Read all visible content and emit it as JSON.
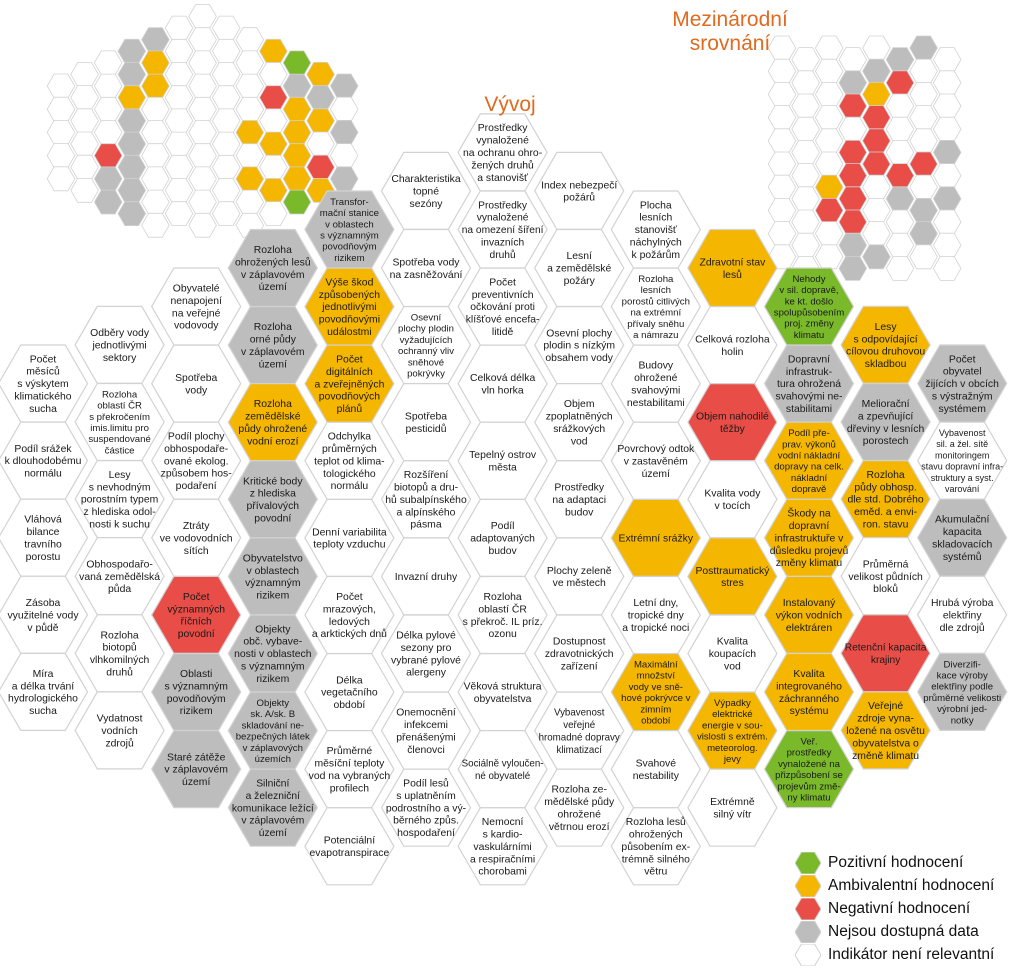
{
  "titles": {
    "development": "Vývoj",
    "international": [
      "Mezinárodní",
      "srovnání"
    ]
  },
  "colors": {
    "positive": "#7ab929",
    "ambivalent": "#f5b600",
    "negative": "#e94d47",
    "no_data": "#bdbdbd",
    "not_relevant": "#ffffff",
    "stroke": "#d2d2d2",
    "title": "#e06a1f"
  },
  "legend": [
    {
      "key": "positive",
      "label": "Pozitivní hodnocení"
    },
    {
      "key": "ambivalent",
      "label": "Ambivalentní hodnocení"
    },
    {
      "key": "negative",
      "label": "Negativní hodnocení"
    },
    {
      "key": "no_data",
      "label": "Nejsou dostupná data"
    },
    {
      "key": "not_relevant",
      "label": "Indikátor není relevantní"
    }
  ],
  "indicators": [
    {
      "col": 0,
      "row": 0,
      "status": "not_relevant",
      "text": [
        "Počet",
        "měsíců",
        "s výskytem",
        "klimatického",
        "sucha"
      ]
    },
    {
      "col": 0,
      "row": 1,
      "status": "not_relevant",
      "text": [
        "Podíl srážek",
        "k dlouhodobému",
        "normálu"
      ]
    },
    {
      "col": 0,
      "row": 2,
      "status": "not_relevant",
      "text": [
        "Vláhová",
        "bilance",
        "travního",
        "porostu"
      ]
    },
    {
      "col": 0,
      "row": 3,
      "status": "not_relevant",
      "text": [
        "Zásoba",
        "využitelné vody",
        "v půdě"
      ]
    },
    {
      "col": 0,
      "row": 4,
      "status": "not_relevant",
      "text": [
        "Míra",
        "a délka trvání",
        "hydrologického",
        "sucha"
      ]
    },
    {
      "col": 1,
      "row": 0,
      "status": "not_relevant",
      "text": [
        "Odběry vody",
        "jednotlivými",
        "sektory"
      ]
    },
    {
      "col": 1,
      "row": 1,
      "status": "not_relevant",
      "text": [
        "Rozloha",
        "oblastí ČR",
        "s překročením",
        "imis.limitu pro",
        "suspendované",
        "částice"
      ]
    },
    {
      "col": 1,
      "row": 2,
      "status": "not_relevant",
      "text": [
        "Lesy",
        "s nevhodným",
        "porostním typem",
        "z hlediska odol-",
        "nosti k suchu"
      ]
    },
    {
      "col": 1,
      "row": 3,
      "status": "not_relevant",
      "text": [
        "Obhospodařo-",
        "vaná zemědělská",
        "půda"
      ]
    },
    {
      "col": 1,
      "row": 4,
      "status": "not_relevant",
      "text": [
        "Rozloha",
        "biotopů",
        "vlhkomilných",
        "druhů"
      ]
    },
    {
      "col": 1,
      "row": 5,
      "status": "not_relevant",
      "text": [
        "Vydatnost",
        "vodních",
        "zdrojů"
      ]
    },
    {
      "col": 2,
      "row": 0,
      "status": "not_relevant",
      "text": [
        "Obyvatelé",
        "nenapojení",
        "na veřejné",
        "vodovody"
      ]
    },
    {
      "col": 2,
      "row": 1,
      "status": "not_relevant",
      "text": [
        "Spotřeba",
        "vody"
      ]
    },
    {
      "col": 2,
      "row": 2,
      "status": "not_relevant",
      "text": [
        "Podíl plochy",
        "obhospodaře-",
        "ované ekolog.",
        "způsobem hos-",
        "podaření"
      ]
    },
    {
      "col": 2,
      "row": 3,
      "status": "not_relevant",
      "text": [
        "Ztráty",
        "ve vodovodních",
        "sítích"
      ]
    },
    {
      "col": 2,
      "row": 4,
      "status": "negative",
      "text": [
        "Počet",
        "významných",
        "říčních",
        "povodní"
      ]
    },
    {
      "col": 2,
      "row": 5,
      "status": "no_data",
      "text": [
        "Oblasti",
        "s významným",
        "povodňovým",
        "rizikem"
      ]
    },
    {
      "col": 2,
      "row": 6,
      "status": "no_data",
      "text": [
        "Staré zátěže",
        "v záplavovém",
        "území"
      ]
    },
    {
      "col": 3,
      "row": 0,
      "status": "no_data",
      "text": [
        "Rozloha",
        "ohrožených lesů",
        "v záplavovém",
        "území"
      ]
    },
    {
      "col": 3,
      "row": 1,
      "status": "no_data",
      "text": [
        "Rozloha",
        "orné půdy",
        "v záplavovém",
        "území"
      ]
    },
    {
      "col": 3,
      "row": 2,
      "status": "ambivalent",
      "text": [
        "Rozloha",
        "zemědělské",
        "půdy ohrožené",
        "vodní erozí"
      ]
    },
    {
      "col": 3,
      "row": 3,
      "status": "no_data",
      "text": [
        "Kritické body",
        "z hlediska",
        "přívalových",
        "povodní"
      ]
    },
    {
      "col": 3,
      "row": 4,
      "status": "no_data",
      "text": [
        "Obyvatelstvo",
        "v oblastech",
        "významným",
        "rizikem"
      ]
    },
    {
      "col": 3,
      "row": 5,
      "status": "no_data",
      "text": [
        "Objekty",
        "obč. vybave-",
        "nosti v oblastech",
        "s významným",
        "rizikem"
      ]
    },
    {
      "col": 3,
      "row": 6,
      "status": "no_data",
      "text": [
        "Objekty",
        "sk. A/sk. B",
        "skladování ne-",
        "bezpečných látek",
        "v záplavových",
        "územích"
      ]
    },
    {
      "col": 3,
      "row": 7,
      "status": "no_data",
      "text": [
        "Silniční",
        "a železniční",
        "komunikace ležící",
        "v záplavovém",
        "území"
      ]
    },
    {
      "col": 4,
      "row": 0,
      "status": "no_data",
      "text": [
        "Transfor-",
        "mační stanice",
        "v oblastech",
        "s významným",
        "povodňovým",
        "rizikem"
      ]
    },
    {
      "col": 4,
      "row": 1,
      "status": "ambivalent",
      "text": [
        "Výše škod",
        "způsobených",
        "jednotlivými",
        "povodňovými",
        "událostmi"
      ]
    },
    {
      "col": 4,
      "row": 2,
      "status": "ambivalent",
      "text": [
        "Počet",
        "digitálních",
        "a zveřejněných",
        "povodňových",
        "plánů"
      ]
    },
    {
      "col": 4,
      "row": 3,
      "status": "not_relevant",
      "text": [
        "Odchylka",
        "průměrných",
        "teplot od klima-",
        "tologického",
        "normálu"
      ]
    },
    {
      "col": 4,
      "row": 4,
      "status": "not_relevant",
      "text": [
        "Denní variabilita",
        "teploty vzduchu"
      ]
    },
    {
      "col": 4,
      "row": 5,
      "status": "not_relevant",
      "text": [
        "Počet",
        "mrazových,",
        "ledových",
        "a arktických dnů"
      ]
    },
    {
      "col": 4,
      "row": 6,
      "status": "not_relevant",
      "text": [
        "Délka",
        "vegetačního",
        "období"
      ]
    },
    {
      "col": 4,
      "row": 7,
      "status": "not_relevant",
      "text": [
        "Průměrné",
        "měsíční teploty",
        "vod na vybraných",
        "profilech"
      ]
    },
    {
      "col": 4,
      "row": 8,
      "status": "not_relevant",
      "text": [
        "Potenciální",
        "evapotranspirace"
      ]
    },
    {
      "col": 5,
      "row": 0,
      "status": "not_relevant",
      "text": [
        "Charakteristika",
        "topné",
        "sezóny"
      ]
    },
    {
      "col": 5,
      "row": 1,
      "status": "not_relevant",
      "text": [
        "Spotřeba vody",
        "na zasněžování"
      ]
    },
    {
      "col": 5,
      "row": 2,
      "status": "not_relevant",
      "text": [
        "Osevní",
        "plochy plodin",
        "vyžadujících",
        "ochranný vliv",
        "sněhové",
        "pokrývky"
      ]
    },
    {
      "col": 5,
      "row": 3,
      "status": "not_relevant",
      "text": [
        "Spotřeba",
        "pesticidů"
      ]
    },
    {
      "col": 5,
      "row": 4,
      "status": "not_relevant",
      "text": [
        "Rozšíření",
        "biotopů a dru-",
        "hů subalpínského",
        "a alpínského",
        "pásma"
      ]
    },
    {
      "col": 5,
      "row": 5,
      "status": "not_relevant",
      "text": [
        "Invazní druhy"
      ]
    },
    {
      "col": 5,
      "row": 6,
      "status": "not_relevant",
      "text": [
        "Délka pylové",
        "sezony pro",
        "vybrané pylové",
        "alergeny"
      ]
    },
    {
      "col": 5,
      "row": 7,
      "status": "not_relevant",
      "text": [
        "Onemocnění",
        "infekcemi",
        "přenášenými",
        "členovci"
      ]
    },
    {
      "col": 5,
      "row": 8,
      "status": "not_relevant",
      "text": [
        "Podíl lesů",
        "s uplatněním",
        "podrostního a vý-",
        "běrného způs.",
        "hospodaření"
      ]
    },
    {
      "col": 6,
      "row": 0,
      "status": "not_relevant",
      "text": [
        "Prostředky",
        "vynaložené",
        "na ochranu ohro-",
        "žených druhů",
        "a stanovišť"
      ]
    },
    {
      "col": 6,
      "row": 1,
      "status": "not_relevant",
      "text": [
        "Prostředky",
        "vynaložené",
        "na omezení šíření",
        "invazních",
        "druhů"
      ]
    },
    {
      "col": 6,
      "row": 2,
      "status": "not_relevant",
      "text": [
        "Počet",
        "preventivních",
        "očkování proti",
        "klíšťové encefa-",
        "litidě"
      ]
    },
    {
      "col": 6,
      "row": 3,
      "status": "not_relevant",
      "text": [
        "Celková délka",
        "vln horka"
      ]
    },
    {
      "col": 6,
      "row": 4,
      "status": "not_relevant",
      "text": [
        "Tepelný ostrov",
        "města"
      ]
    },
    {
      "col": 6,
      "row": 5,
      "status": "not_relevant",
      "text": [
        "Podíl",
        "adaptovaných",
        "budov"
      ]
    },
    {
      "col": 6,
      "row": 6,
      "status": "not_relevant",
      "text": [
        "Rozloha",
        "oblastí ČR",
        "s překroč. IL príz.",
        "ozonu"
      ]
    },
    {
      "col": 6,
      "row": 7,
      "status": "not_relevant",
      "text": [
        "Věková struktura",
        "obyvatelstva"
      ]
    },
    {
      "col": 6,
      "row": 8,
      "status": "not_relevant",
      "text": [
        "Sociálně vyloučen-",
        "né obyvatelé"
      ]
    },
    {
      "col": 6,
      "row": 9,
      "status": "not_relevant",
      "text": [
        "Nemocní",
        "s kardio-",
        "vaskulárními",
        "a respiračními",
        "chorobami"
      ]
    },
    {
      "col": 7,
      "row": 0,
      "status": "not_relevant",
      "text": [
        "Index nebezpečí",
        "požárů"
      ]
    },
    {
      "col": 7,
      "row": 1,
      "status": "not_relevant",
      "text": [
        "Lesní",
        "a zemědělské",
        "požáry"
      ]
    },
    {
      "col": 7,
      "row": 2,
      "status": "not_relevant",
      "text": [
        "Osevní plochy",
        "plodin s nízkým",
        "obsahem vody"
      ]
    },
    {
      "col": 7,
      "row": 3,
      "status": "not_relevant",
      "text": [
        "Objem",
        "zpoplatněných",
        "srážkových",
        "vod"
      ]
    },
    {
      "col": 7,
      "row": 4,
      "status": "not_relevant",
      "text": [
        "Prostředky",
        "na adaptaci",
        "budov"
      ]
    },
    {
      "col": 7,
      "row": 5,
      "status": "not_relevant",
      "text": [
        "Plochy zeleně",
        "ve městech"
      ]
    },
    {
      "col": 7,
      "row": 6,
      "status": "not_relevant",
      "text": [
        "Dostupnost",
        "zdravotnických",
        "zařízení"
      ]
    },
    {
      "col": 7,
      "row": 7,
      "status": "not_relevant",
      "text": [
        "Vybavenost",
        "veřejné",
        "hromadné dopravy",
        "klimatizací"
      ]
    },
    {
      "col": 7,
      "row": 8,
      "status": "not_relevant",
      "text": [
        "Rozloha ze-",
        "mědělské půdy",
        "ohrožené",
        "větrnou erozí"
      ]
    },
    {
      "col": 8,
      "row": 0,
      "status": "not_relevant",
      "text": [
        "Plocha",
        "lesních",
        "stanovišť",
        "náchylných",
        "k požárům"
      ]
    },
    {
      "col": 8,
      "row": 1,
      "status": "not_relevant",
      "text": [
        "Rozloha",
        "lesních",
        "porostů citlivých",
        "na extrémní",
        "přívaly sněhu",
        "a námrazu"
      ]
    },
    {
      "col": 8,
      "row": 2,
      "status": "not_relevant",
      "text": [
        "Budovy",
        "ohrožené",
        "svahovými",
        "nestabilitami"
      ]
    },
    {
      "col": 8,
      "row": 3,
      "status": "not_relevant",
      "text": [
        "Povrchový odtok",
        "v zastavěném",
        "území"
      ]
    },
    {
      "col": 8,
      "row": 4,
      "status": "ambivalent",
      "text": [
        "Extrémní srážky"
      ]
    },
    {
      "col": 8,
      "row": 5,
      "status": "not_relevant",
      "text": [
        "Letní dny,",
        "tropické dny",
        "a tropické noci"
      ]
    },
    {
      "col": 8,
      "row": 6,
      "status": "ambivalent",
      "text": [
        "Maximální",
        "množství",
        "vody ve sně-",
        "hové pokrývce v",
        "zimním",
        "období"
      ]
    },
    {
      "col": 8,
      "row": 7,
      "status": "not_relevant",
      "text": [
        "Svahové",
        "nestability"
      ]
    },
    {
      "col": 8,
      "row": 8,
      "status": "not_relevant",
      "text": [
        "Rozloha lesů",
        "ohrožených",
        "působením ex-",
        "trémně silného",
        "větru"
      ]
    },
    {
      "col": 9,
      "row": 0,
      "status": "ambivalent",
      "text": [
        "Zdravotní stav",
        "lesů"
      ]
    },
    {
      "col": 9,
      "row": 1,
      "status": "not_relevant",
      "text": [
        "Celková rozloha",
        "holin"
      ]
    },
    {
      "col": 9,
      "row": 2,
      "status": "negative",
      "text": [
        "Objem nahodilé",
        "těžby"
      ]
    },
    {
      "col": 9,
      "row": 3,
      "status": "not_relevant",
      "text": [
        "Kvalita vody",
        "v tocích"
      ]
    },
    {
      "col": 9,
      "row": 4,
      "status": "ambivalent",
      "text": [
        "Posttraumatický",
        "stres"
      ]
    },
    {
      "col": 9,
      "row": 5,
      "status": "not_relevant",
      "text": [
        "Kvalita",
        "koupacích",
        "vod"
      ]
    },
    {
      "col": 9,
      "row": 6,
      "status": "ambivalent",
      "text": [
        "Výpadky",
        "elektrické",
        "energie v sou-",
        "vislosti s extrém.",
        "meteorolog.",
        "jevy"
      ]
    },
    {
      "col": 9,
      "row": 7,
      "status": "not_relevant",
      "text": [
        "Extrémně",
        "silný vítr"
      ]
    },
    {
      "col": 10,
      "row": 0,
      "status": "positive",
      "text": [
        "Nehody",
        "v sil. dopravě,",
        "ke kt. došlo",
        "spolupůsobením",
        "proj. změny",
        "klimatu"
      ]
    },
    {
      "col": 10,
      "row": 1,
      "status": "no_data",
      "text": [
        "Dopravní",
        "infrastruk-",
        "tura ohrožená",
        "svahovými ne-",
        "stabilitami"
      ]
    },
    {
      "col": 10,
      "row": 2,
      "status": "ambivalent",
      "text": [
        "Podíl pře-",
        "prav. výkonů",
        "vodní nákladní",
        "dopravy na celk.",
        "nákladní",
        "dopravě"
      ]
    },
    {
      "col": 10,
      "row": 3,
      "status": "ambivalent",
      "text": [
        "Škody na",
        "dopravní",
        "infrastruktuře v",
        "důsledku projevů",
        "změny klimatu"
      ]
    },
    {
      "col": 10,
      "row": 4,
      "status": "ambivalent",
      "text": [
        "Instalovaný",
        "výkon vodních",
        "elektráren"
      ]
    },
    {
      "col": 10,
      "row": 5,
      "status": "ambivalent",
      "text": [
        "Kvalita",
        "integrovaného",
        "záchranného",
        "systému"
      ]
    },
    {
      "col": 10,
      "row": 6,
      "status": "positive",
      "text": [
        "Veř.",
        "prostředky",
        "vynaložené na",
        "přizpůsobení se",
        "projevům změ-",
        "ny klimatu"
      ]
    },
    {
      "col": 11,
      "row": 0,
      "status": "ambivalent",
      "text": [
        "Lesy",
        "s odpovídající",
        "cílovou druhovou",
        "skladbou"
      ]
    },
    {
      "col": 11,
      "row": 1,
      "status": "no_data",
      "text": [
        "Meliorační",
        "a zpevňující",
        "dřeviny v lesních",
        "porostech"
      ]
    },
    {
      "col": 11,
      "row": 2,
      "status": "ambivalent",
      "text": [
        "Rozloha",
        "půdy obhosp.",
        "dle std. Dobrého",
        "eměd. a envi-",
        "ron. stavu"
      ]
    },
    {
      "col": 11,
      "row": 3,
      "status": "not_relevant",
      "text": [
        "Průměrná",
        "velikost půdních",
        "bloků"
      ]
    },
    {
      "col": 11,
      "row": 4,
      "status": "negative",
      "text": [
        "Retenční kapacita",
        "krajiny"
      ]
    },
    {
      "col": 11,
      "row": 5,
      "status": "ambivalent",
      "text": [
        "Veřejné",
        "zdroje vyna-",
        "ložené na osvětu",
        "obyvatelstva o",
        "změně klimatu"
      ]
    },
    {
      "col": 12,
      "row": 0,
      "status": "no_data",
      "text": [
        "Počet",
        "obyvatel",
        "žijících v obcích",
        "s výstražným",
        "systémem"
      ]
    },
    {
      "col": 12,
      "row": 1,
      "status": "not_relevant",
      "text": [
        "Vybavenost",
        "sil. a žel. sítě",
        "monitoringem",
        "stavu dopravní infra-",
        "struktury a syst.",
        "varování"
      ]
    },
    {
      "col": 12,
      "row": 2,
      "status": "no_data",
      "text": [
        "Akumulační",
        "kapacita",
        "skladovacích",
        "systémů"
      ]
    },
    {
      "col": 12,
      "row": 3,
      "status": "not_relevant",
      "text": [
        "Hrubá výroba",
        "elektřiny",
        "dle zdrojů"
      ]
    },
    {
      "col": 12,
      "row": 4,
      "status": "no_data",
      "text": [
        "Diverzifi-",
        "kace výroby",
        "elektřiny podle",
        "průměrné velikosti",
        "výrobní jed-",
        "notky"
      ]
    }
  ],
  "mini_intl": [
    "     XX ",
    "   XXR  ",
    "   RA   ",
    "    R   ",
    "   RR  X",
    "   RRRR ",
    "  AR X X",
    "  RR  X ",
    "   X  X ",
    "   XX   "
  ]
}
